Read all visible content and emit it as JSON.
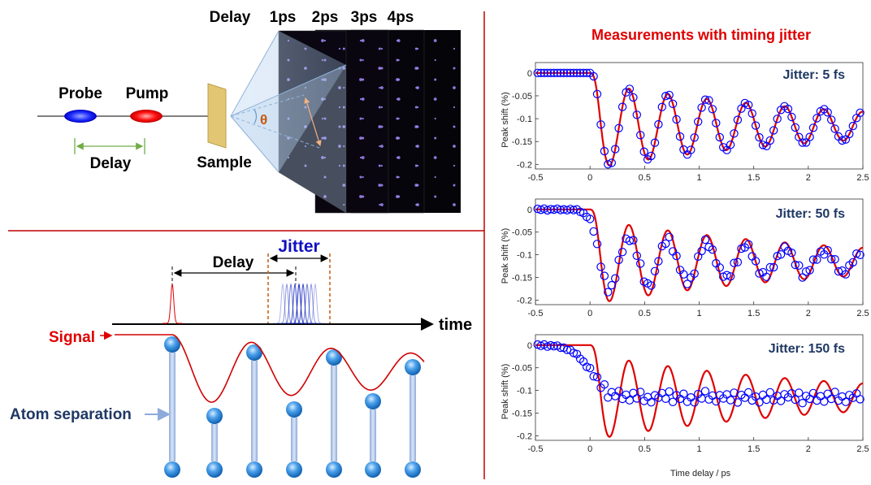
{
  "setup": {
    "probe_label": "Probe",
    "pump_label": "Pump",
    "delay_label": "Delay",
    "sample_label": "Sample",
    "delay_header": "Delay",
    "delay_steps": [
      "1ps",
      "2ps",
      "3ps",
      "4ps"
    ],
    "theta": "θ"
  },
  "timing": {
    "delay_label": "Delay",
    "jitter_label": "Jitter",
    "time_label": "time",
    "signal_label": "Signal",
    "atom_label": "Atom separation"
  },
  "measurements": {
    "title": "Measurements with timing jitter",
    "x_label": "Time delay / ps",
    "y_label": "Peak shift (%)"
  },
  "colors": {
    "accent_red": "#e00000",
    "jitter_blue": "#1010c0",
    "navy": "#1f3864",
    "marker_blue": "#0000ff"
  },
  "chart_data": [
    {
      "type": "line",
      "title": "Jitter: 5 fs",
      "xlabel": "",
      "ylabel": "Peak shift (%)",
      "xlim": [
        -0.5,
        2.5
      ],
      "ylim": [
        -0.21,
        0.005
      ],
      "xticks": [
        "-0.5",
        "0",
        "0.5",
        "1",
        "1.5",
        "2",
        "2.5"
      ],
      "yticks": [
        "0",
        "-0.05",
        "-0.1",
        "-0.15",
        "-0.2"
      ],
      "jitter_fs": 5,
      "series": [
        {
          "kind": "model_line",
          "color": "#e00000"
        },
        {
          "kind": "measured_markers",
          "color": "#0000ff"
        }
      ]
    },
    {
      "type": "line",
      "title": "Jitter: 50 fs",
      "xlabel": "",
      "ylabel": "Peak shift (%)",
      "xlim": [
        -0.5,
        2.5
      ],
      "ylim": [
        -0.21,
        0.005
      ],
      "xticks": [
        "-0.5",
        "0",
        "0.5",
        "1",
        "1.5",
        "2",
        "2.5"
      ],
      "yticks": [
        "0",
        "-0.05",
        "-0.1",
        "-0.15",
        "-0.2"
      ],
      "jitter_fs": 50,
      "series": [
        {
          "kind": "model_line",
          "color": "#e00000"
        },
        {
          "kind": "measured_markers",
          "color": "#0000ff"
        }
      ]
    },
    {
      "type": "line",
      "title": "Jitter: 150 fs",
      "xlabel": "Time delay / ps",
      "ylabel": "Peak shift (%)",
      "xlim": [
        -0.5,
        2.5
      ],
      "ylim": [
        -0.21,
        0.005
      ],
      "xticks": [
        "-0.5",
        "0",
        "0.5",
        "1",
        "1.5",
        "2",
        "2.5"
      ],
      "yticks": [
        "0",
        "-0.05",
        "-0.1",
        "-0.15",
        "-0.2"
      ],
      "jitter_fs": 150,
      "series": [
        {
          "kind": "model_line",
          "color": "#e00000"
        },
        {
          "kind": "measured_markers",
          "color": "#0000ff"
        }
      ]
    }
  ]
}
